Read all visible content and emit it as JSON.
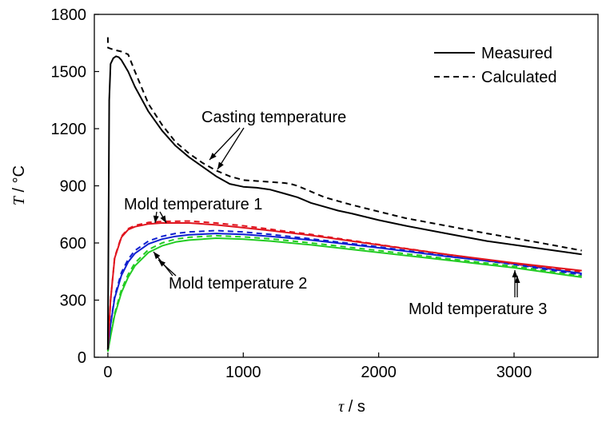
{
  "chart_data": {
    "type": "line",
    "xlabel_symbol": "τ",
    "xlabel_unit": " / s",
    "ylabel_symbol": "T",
    "ylabel_unit": " / °C",
    "xlim": [
      -100,
      3620
    ],
    "ylim": [
      0,
      1800
    ],
    "xticks": [
      0,
      1000,
      2000,
      3000
    ],
    "yticks": [
      0,
      300,
      600,
      900,
      1200,
      1500,
      1800
    ],
    "grid": false,
    "legend": {
      "placement": "top-right",
      "entries": [
        {
          "label": "Measured",
          "style": "solid"
        },
        {
          "label": "Calculated",
          "style": "dashed"
        }
      ]
    },
    "colors": {
      "casting": "#000000",
      "mold1": "#e0141e",
      "mold2": "#1020d0",
      "mold3": "#22cc22"
    },
    "annotations": [
      {
        "text": "Casting temperature"
      },
      {
        "text": "Mold temperature 1"
      },
      {
        "text": "Mold temperature 2"
      },
      {
        "text": "Mold temperature 3"
      }
    ],
    "series": [
      {
        "curve": "casting",
        "style": "solid",
        "x": [
          0,
          10,
          20,
          40,
          60,
          80,
          100,
          150,
          200,
          300,
          400,
          500,
          600,
          700,
          800,
          900,
          1000,
          1100,
          1200,
          1300,
          1400,
          1500,
          1600,
          1700,
          1800,
          2000,
          2200,
          2500,
          2800,
          3000,
          3200,
          3500
        ],
        "values": [
          40,
          1350,
          1540,
          1570,
          1580,
          1575,
          1560,
          1500,
          1420,
          1290,
          1190,
          1110,
          1050,
          1000,
          950,
          910,
          895,
          890,
          880,
          860,
          840,
          810,
          790,
          770,
          755,
          720,
          690,
          650,
          610,
          590,
          570,
          540
        ]
      },
      {
        "curve": "casting",
        "style": "dashed",
        "x": [
          0,
          1,
          40,
          100,
          150,
          200,
          300,
          400,
          500,
          600,
          700,
          800,
          900,
          1000,
          1100,
          1200,
          1300,
          1350,
          1400,
          1500,
          1600,
          1700,
          1800,
          2000,
          2200,
          2500,
          2800,
          3000,
          3200,
          3500
        ],
        "values": [
          1680,
          1625,
          1615,
          1605,
          1590,
          1500,
          1330,
          1220,
          1130,
          1070,
          1020,
          980,
          950,
          930,
          925,
          920,
          915,
          910,
          900,
          870,
          840,
          820,
          800,
          765,
          730,
          690,
          650,
          625,
          600,
          560
        ]
      },
      {
        "curve": "mold1",
        "style": "solid",
        "x": [
          0,
          20,
          50,
          100,
          150,
          200,
          300,
          400,
          600,
          800,
          1000,
          1200,
          1500,
          2000,
          2500,
          3000,
          3500
        ],
        "values": [
          40,
          300,
          520,
          630,
          670,
          685,
          700,
          705,
          705,
          695,
          680,
          665,
          640,
          590,
          540,
          495,
          455
        ]
      },
      {
        "curve": "mold1",
        "style": "dashed",
        "x": [
          0,
          20,
          50,
          100,
          150,
          200,
          300,
          400,
          600,
          800,
          1000,
          1200,
          1500,
          2000,
          2500,
          3000,
          3500
        ],
        "values": [
          40,
          300,
          525,
          635,
          675,
          692,
          708,
          713,
          715,
          705,
          690,
          672,
          645,
          592,
          540,
          492,
          448
        ]
      },
      {
        "curve": "mold2",
        "style": "solid",
        "x": [
          0,
          20,
          50,
          100,
          150,
          200,
          300,
          400,
          500,
          600,
          800,
          1000,
          1200,
          1500,
          2000,
          2500,
          3000,
          3500
        ],
        "values": [
          40,
          170,
          310,
          430,
          500,
          545,
          595,
          620,
          635,
          643,
          650,
          645,
          635,
          615,
          575,
          530,
          490,
          440
        ]
      },
      {
        "curve": "mold2",
        "style": "dashed",
        "x": [
          0,
          20,
          50,
          100,
          150,
          200,
          300,
          400,
          500,
          600,
          800,
          1000,
          1200,
          1500,
          2000,
          2500,
          3000,
          3500
        ],
        "values": [
          40,
          175,
          320,
          445,
          515,
          560,
          610,
          635,
          650,
          658,
          665,
          658,
          645,
          622,
          580,
          532,
          487,
          433
        ]
      },
      {
        "curve": "mold3",
        "style": "solid",
        "x": [
          0,
          20,
          50,
          100,
          150,
          200,
          300,
          400,
          500,
          600,
          800,
          1000,
          1200,
          1500,
          2000,
          2500,
          3000,
          3500
        ],
        "values": [
          30,
          110,
          220,
          340,
          420,
          480,
          550,
          585,
          605,
          615,
          625,
          620,
          610,
          590,
          550,
          510,
          470,
          420
        ]
      },
      {
        "curve": "mold3",
        "style": "dashed",
        "x": [
          0,
          20,
          50,
          100,
          150,
          200,
          300,
          400,
          500,
          600,
          800,
          1000,
          1200,
          1500,
          2000,
          2500,
          3000,
          3500
        ],
        "values": [
          30,
          115,
          230,
          355,
          435,
          495,
          565,
          600,
          620,
          630,
          638,
          632,
          622,
          600,
          560,
          518,
          478,
          428
        ]
      }
    ]
  }
}
